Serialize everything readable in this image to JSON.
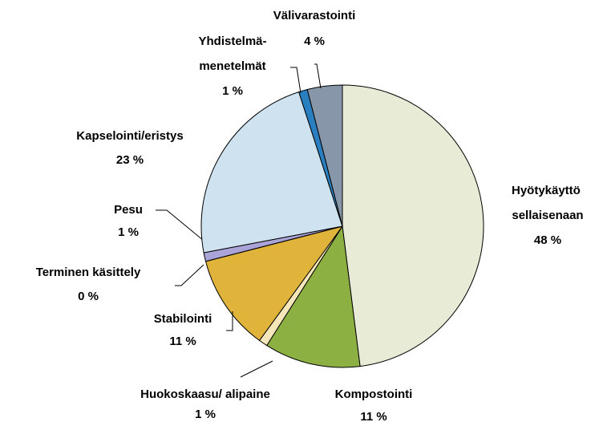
{
  "chart_data": {
    "type": "pie",
    "categories": [
      "Hyötykäyttö sellaisenaan",
      "Kompostointi",
      "Huokoskaasu/ alipaine",
      "Stabilointi",
      "Terminen käsittely",
      "Pesu",
      "Kapselointi/eristys",
      "Yhdistelmä-menetelmät",
      "Välivarastointi"
    ],
    "values": [
      48,
      11,
      1,
      11,
      0,
      1,
      23,
      1,
      4
    ],
    "value_labels": [
      "48 %",
      "11 %",
      "1 %",
      "11 %",
      "0 %",
      "1 %",
      "23 %",
      "1 %",
      "4 %"
    ],
    "colors": [
      "#e8ecd6",
      "#8db043",
      "#f6e7ba",
      "#e0b43a",
      "#6f6f6f",
      "#aaa4d8",
      "#cfe2f0",
      "#2a7fc1",
      "#8796a8"
    ]
  }
}
